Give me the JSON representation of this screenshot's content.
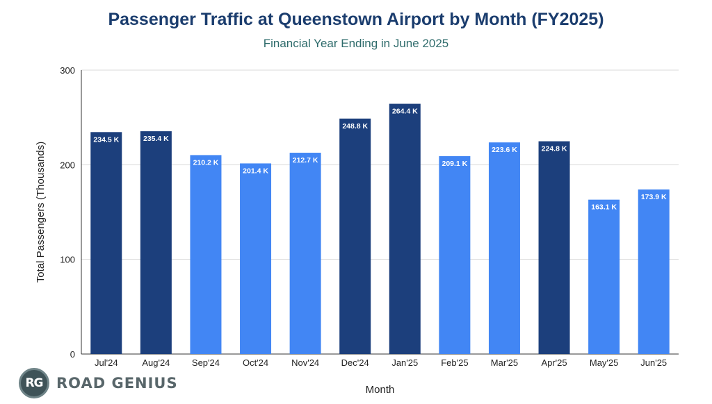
{
  "chart_data": {
    "type": "bar",
    "title": "Passenger Traffic at Queenstown Airport by Month (FY2025)",
    "subtitle": "Financial Year Ending in June 2025",
    "xlabel": "Month",
    "ylabel": "Total Passengers (Thousands)",
    "ylim": [
      0,
      300
    ],
    "yticks": [
      0,
      100,
      200,
      300
    ],
    "grid": true,
    "categories": [
      "Jul'24",
      "Aug'24",
      "Sep'24",
      "Oct'24",
      "Nov'24",
      "Dec'24",
      "Jan'25",
      "Feb'25",
      "Mar'25",
      "Apr'25",
      "May'25",
      "Jun'25"
    ],
    "values": [
      234.5,
      235.4,
      210.2,
      201.4,
      212.7,
      248.8,
      264.4,
      209.1,
      223.6,
      224.8,
      163.1,
      173.9
    ],
    "data_labels": [
      "234.5 K",
      "235.4 K",
      "210.2 K",
      "201.4 K",
      "212.7 K",
      "248.8 K",
      "264.4 K",
      "209.1 K",
      "223.6 K",
      "224.8 K",
      "163.1 K",
      "173.9 K"
    ],
    "highlighted": [
      true,
      true,
      false,
      false,
      false,
      true,
      true,
      false,
      false,
      true,
      false,
      false
    ],
    "colors": {
      "highlight": "#1c3f7c",
      "normal": "#4286f4",
      "grid": "#d9d9d9",
      "axis": "#333333"
    }
  },
  "branding": {
    "logo_initials": "RG",
    "logo_text": "ROAD GENIUS"
  }
}
